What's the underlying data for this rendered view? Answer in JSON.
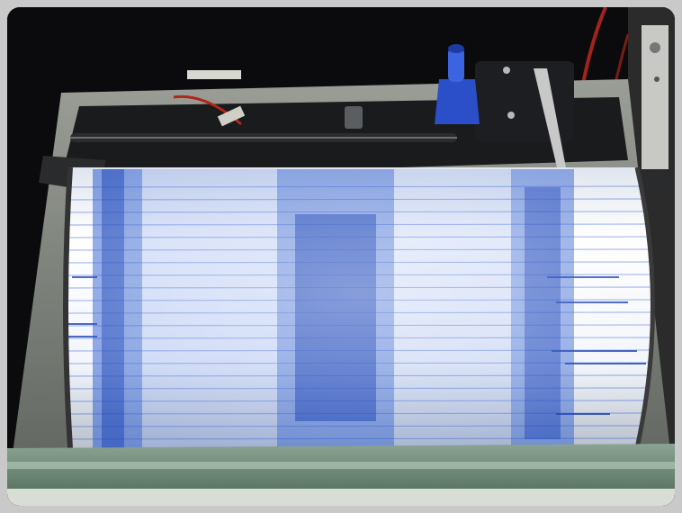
{
  "photo": {
    "subject": "seismograph-drum-recorder",
    "colors": {
      "background": "#0d0d0f",
      "paper": "#f4f6fb",
      "trace": "#2f5fd0",
      "trace_dark": "#1d43b5",
      "housing": "#8a8f86",
      "base": "#6f8a78",
      "stylus_arm": "#b8b8b8",
      "ink_bottle": "#2a4fc9",
      "cable_red": "#b0261a"
    }
  }
}
